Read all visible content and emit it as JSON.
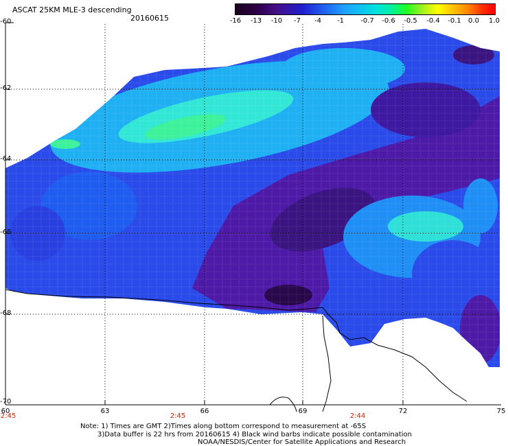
{
  "header": {
    "title": "ASCAT 25KM MLE-3 descending",
    "date": "20160615"
  },
  "colorbar": {
    "labels": [
      "-16",
      "-13",
      "-10",
      "-7",
      "-4",
      "-1",
      "-0.7",
      "-0.6",
      "-0.5",
      "-0.4",
      "-0.1",
      "0.0",
      "1.0"
    ],
    "colors": [
      "#1a0020",
      "#2d0044",
      "#44108a",
      "#2020d0",
      "#2060f0",
      "#20a0ff",
      "#00e0e0",
      "#00f0a0",
      "#20ff20",
      "#a0f020",
      "#ffff00",
      "#ff8000",
      "#ff0000"
    ]
  },
  "axes": {
    "lat_labels": [
      "-60",
      "-62",
      "-64",
      "-66",
      "-68",
      "-70"
    ],
    "lon_labels": [
      "60",
      "63",
      "66",
      "69",
      "72",
      "75"
    ],
    "time_labels": [
      "2:45",
      "2:45",
      "2:44"
    ]
  },
  "notes": {
    "line1": "Note: 1) Times are GMT 2)Times along bottom correspond to measurement at -65S",
    "line2": "3)Data buffer is 22 hrs from 20160615 4) Black wind barbs indicate possible contamination",
    "line3": "NOAA/NESDIS/Center for Satellite Applications and Research"
  }
}
